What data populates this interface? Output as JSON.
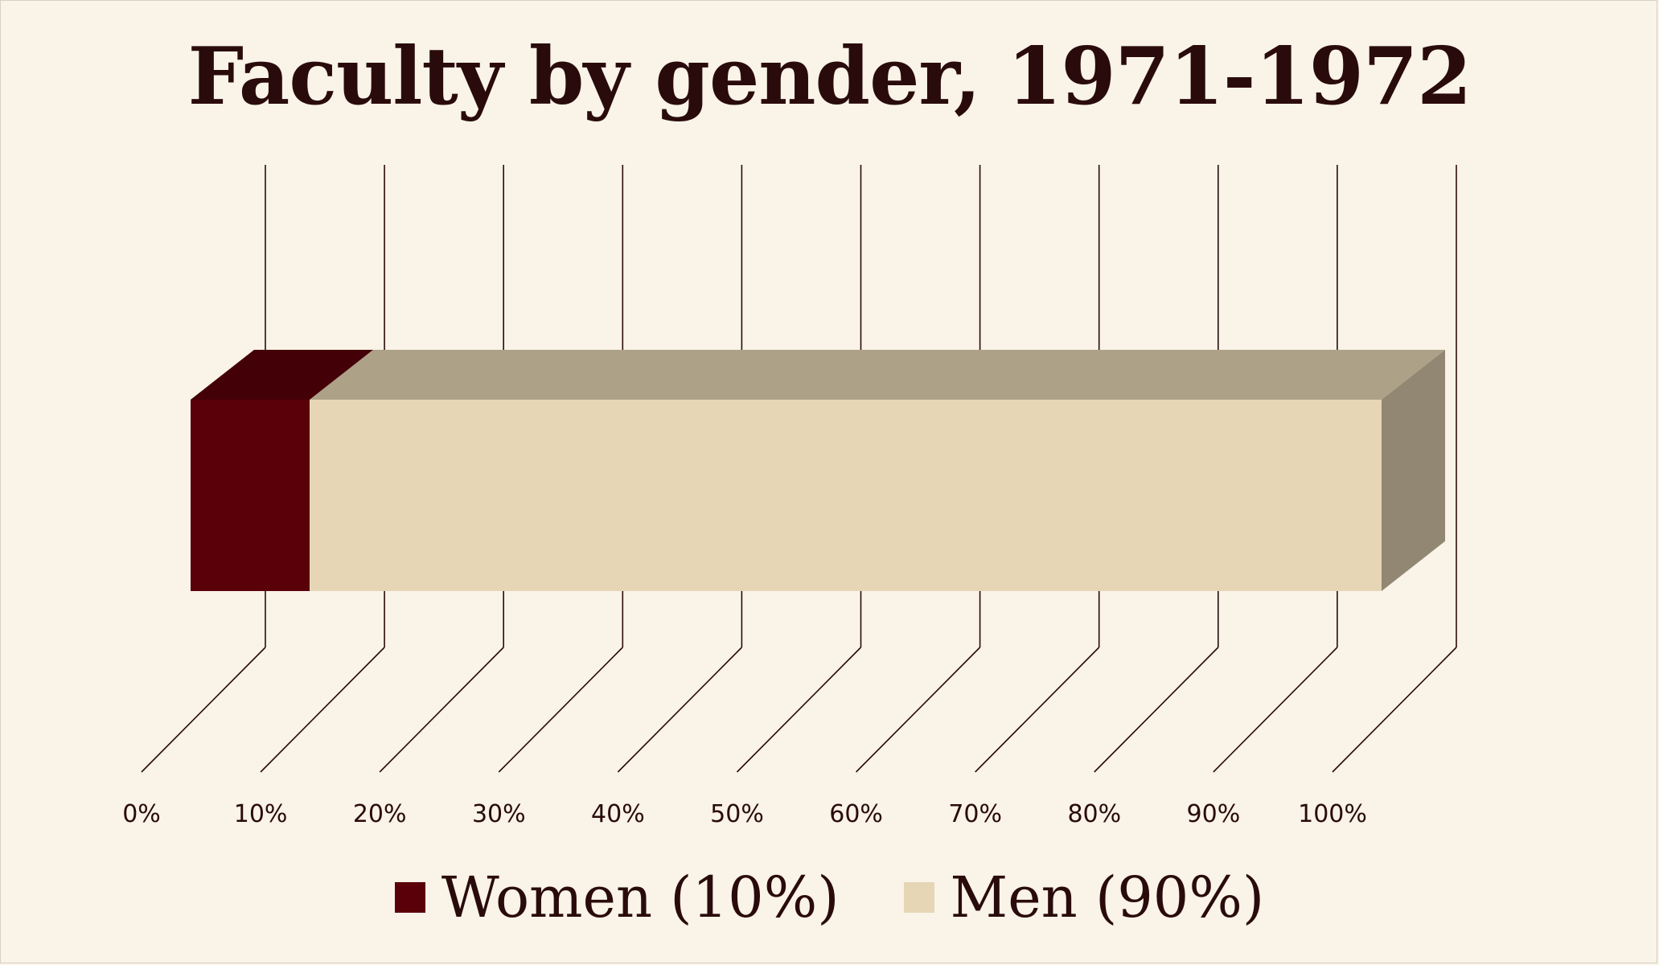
{
  "chart_data": {
    "type": "bar",
    "orientation": "horizontal",
    "stacked": "percent",
    "style": "3d",
    "title": "Faculty by gender, 1971-1972",
    "categories": [
      ""
    ],
    "series": [
      {
        "name": "Women (10%)",
        "values": [
          10
        ],
        "color": "#5a0009"
      },
      {
        "name": "Men (90%)",
        "values": [
          90
        ],
        "color": "#e6d6b5"
      }
    ],
    "xlim": [
      0,
      100
    ],
    "xticks": [
      "0%",
      "10%",
      "20%",
      "30%",
      "40%",
      "50%",
      "60%",
      "70%",
      "80%",
      "90%",
      "100%"
    ],
    "grid": true,
    "legend": "bottom"
  },
  "colors": {
    "background": "#f9f3e8",
    "grid": "#2a0b0b",
    "text": "#2a0b0b"
  }
}
